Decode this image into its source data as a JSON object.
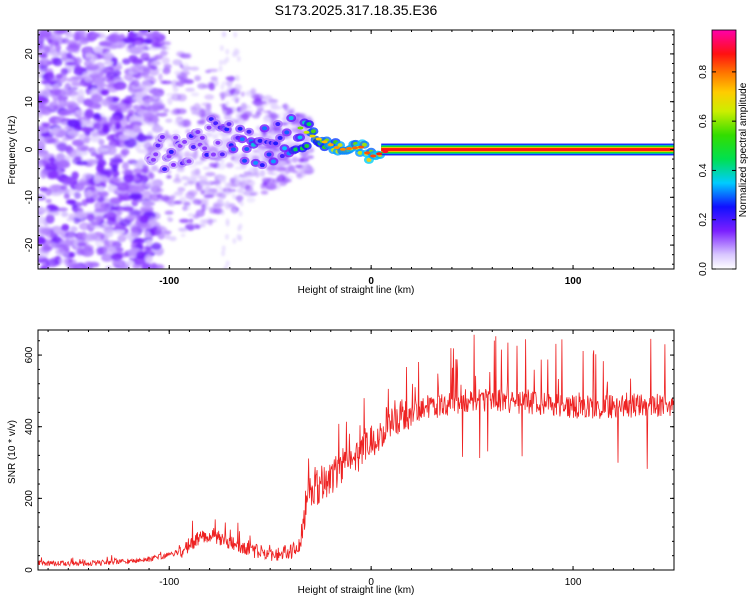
{
  "title": "S173.2025.317.18.35.E36",
  "colors": {
    "snr_line": "#ee2222",
    "ridge_hot": "#ff1a1a",
    "noise": "#8a2be2",
    "cmap": [
      "#ffffff",
      "#e8d8ff",
      "#8a2be2",
      "#1f10ff",
      "#00e5ff",
      "#00dd00",
      "#ffff00",
      "#ff8c00",
      "#ff0000",
      "#ff00aa"
    ]
  },
  "colorbar": {
    "label": "Normalized spectral amplitude",
    "ticks": [
      "0.0",
      "0.2",
      "0.4",
      "0.6",
      "0.8"
    ],
    "tick_values": [
      0.0,
      0.2,
      0.4,
      0.6,
      0.8
    ],
    "range": [
      0,
      0.97
    ]
  },
  "chart_data": [
    {
      "type": "heatmap",
      "title": "S173.2025.317.18.35.E36",
      "xlabel": "Height of straight line (km)",
      "ylabel": "Frequency (Hz)",
      "xlim": [
        -165,
        150
      ],
      "ylim": [
        -25,
        25
      ],
      "xticks": [
        -100,
        0,
        100
      ],
      "yticks": [
        20,
        10,
        0,
        -10,
        -20
      ],
      "description_ridge": [
        {
          "x": -110,
          "y": -1.5,
          "v": 0.2
        },
        {
          "x": -100,
          "y": -1.0,
          "v": 0.25
        },
        {
          "x": -90,
          "y": 0.5,
          "v": 0.25
        },
        {
          "x": -80,
          "y": 3.0,
          "v": 0.25
        },
        {
          "x": -65,
          "y": 0.5,
          "v": 0.35
        },
        {
          "x": -55,
          "y": 0.0,
          "v": 0.4
        },
        {
          "x": -45,
          "y": 2.0,
          "v": 0.35
        },
        {
          "x": -35,
          "y": 4.5,
          "v": 0.5
        },
        {
          "x": -30,
          "y": 3.0,
          "v": 0.6
        },
        {
          "x": -25,
          "y": 2.0,
          "v": 0.65
        },
        {
          "x": -15,
          "y": 0.0,
          "v": 0.7
        },
        {
          "x": -5,
          "y": 0.5,
          "v": 0.75
        },
        {
          "x": 0,
          "y": -1.5,
          "v": 0.75
        },
        {
          "x": 10,
          "y": 0.0,
          "v": 0.85
        },
        {
          "x": 50,
          "y": 0.0,
          "v": 0.9
        },
        {
          "x": 100,
          "y": 0.0,
          "v": 0.92
        },
        {
          "x": 150,
          "y": 0.0,
          "v": 0.92
        }
      ]
    },
    {
      "type": "line",
      "xlabel": "Height of straight line (km)",
      "ylabel": "SNR (10 * v/v)",
      "xlim": [
        -165,
        150
      ],
      "ylim": [
        0,
        670
      ],
      "xticks": [
        -100,
        0,
        100
      ],
      "yticks": [
        0,
        200,
        400,
        600
      ],
      "x": [
        -165,
        -130,
        -110,
        -95,
        -88,
        -80,
        -70,
        -60,
        -50,
        -40,
        -35,
        -33,
        -30,
        -25,
        -15,
        -5,
        0,
        10,
        20,
        30,
        40,
        60,
        80,
        100,
        120,
        150
      ],
      "y": [
        18,
        20,
        30,
        50,
        80,
        100,
        75,
        55,
        45,
        50,
        70,
        160,
        230,
        230,
        290,
        330,
        360,
        420,
        440,
        455,
        465,
        475,
        465,
        455,
        455,
        460
      ]
    }
  ]
}
